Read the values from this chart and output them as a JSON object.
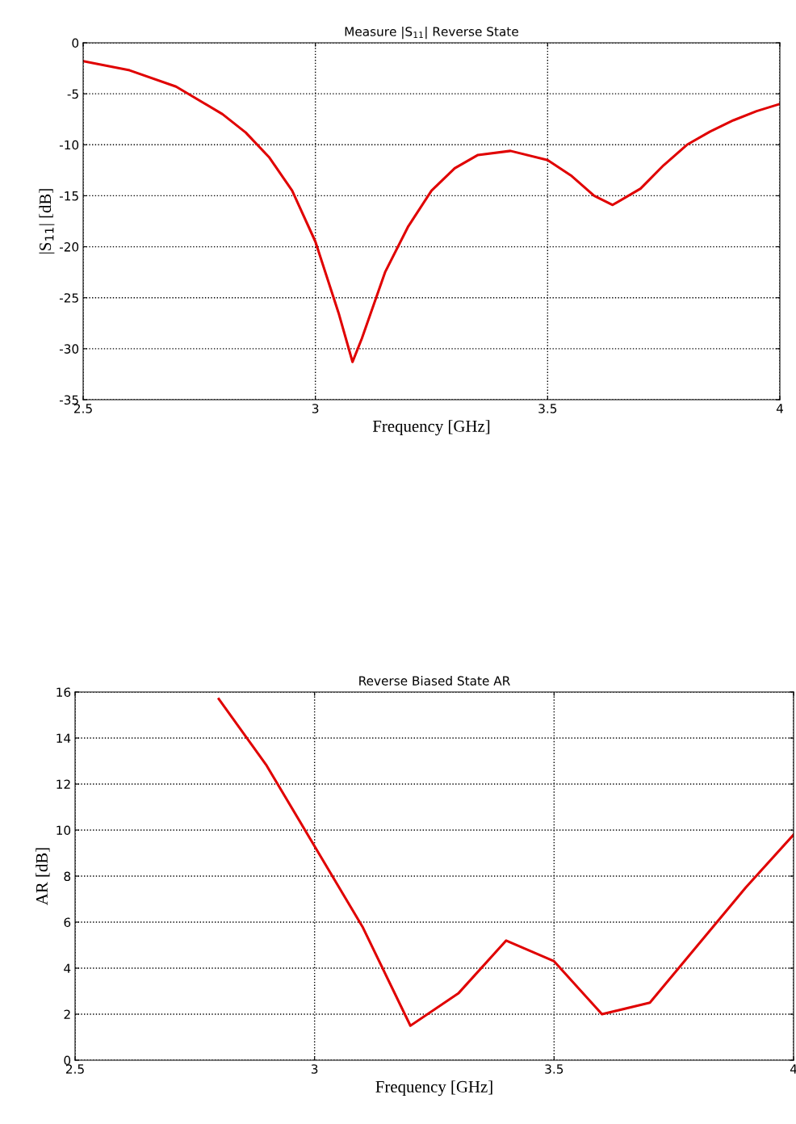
{
  "chart_data": [
    {
      "type": "line",
      "title": "Measure |S$_{11}$| Reverse State",
      "xlabel": "Frequency [GHz]",
      "ylabel": "|S$_{11}$| [dB]",
      "x": [
        2.5,
        2.6,
        2.7,
        2.8,
        2.85,
        2.9,
        2.95,
        3.0,
        3.05,
        3.08,
        3.1,
        3.15,
        3.2,
        3.25,
        3.3,
        3.35,
        3.42,
        3.5,
        3.55,
        3.6,
        3.64,
        3.7,
        3.75,
        3.8,
        3.85,
        3.9,
        3.95,
        4.0
      ],
      "series": [
        {
          "color": "#e00000",
          "values": [
            -1.8,
            -2.7,
            -4.3,
            -7,
            -8.8,
            -11.2,
            -14.5,
            -19.5,
            -26.5,
            -31.3,
            -29,
            -22.5,
            -18,
            -14.5,
            -12.3,
            -11.0,
            -10.6,
            -11.5,
            -13,
            -15,
            -15.9,
            -14.3,
            -12,
            -10,
            -8.7,
            -7.6,
            -6.7,
            -6.0
          ]
        }
      ],
      "xlim": [
        2.5,
        4
      ],
      "xticks": [
        2.5,
        3,
        3.5,
        4
      ],
      "ylim": [
        -35,
        0
      ],
      "yticks": [
        -35,
        -30,
        -25,
        -20,
        -15,
        -10,
        -5,
        0
      ],
      "grid": true,
      "line_style": "solid",
      "marker": "none"
    },
    {
      "type": "line",
      "title": "Reverse Biased State AR",
      "xlabel": "Frequency [GHz]",
      "ylabel": "AR [dB]",
      "x": [
        2.8,
        2.9,
        3.0,
        3.1,
        3.2,
        3.3,
        3.4,
        3.5,
        3.6,
        3.7,
        3.8,
        3.9,
        4.0
      ],
      "series": [
        {
          "color": "#e00000",
          "values": [
            15.7,
            12.8,
            9.3,
            5.8,
            1.5,
            2.9,
            5.2,
            4.3,
            2.0,
            2.5,
            5.0,
            7.5,
            9.8
          ]
        }
      ],
      "xlim": [
        2.5,
        4
      ],
      "xticks": [
        2.5,
        3,
        3.5,
        4
      ],
      "ylim": [
        0,
        16
      ],
      "yticks": [
        0,
        2,
        4,
        6,
        8,
        10,
        12,
        14,
        16
      ],
      "grid": true,
      "line_style": "solid",
      "marker": "none"
    }
  ]
}
